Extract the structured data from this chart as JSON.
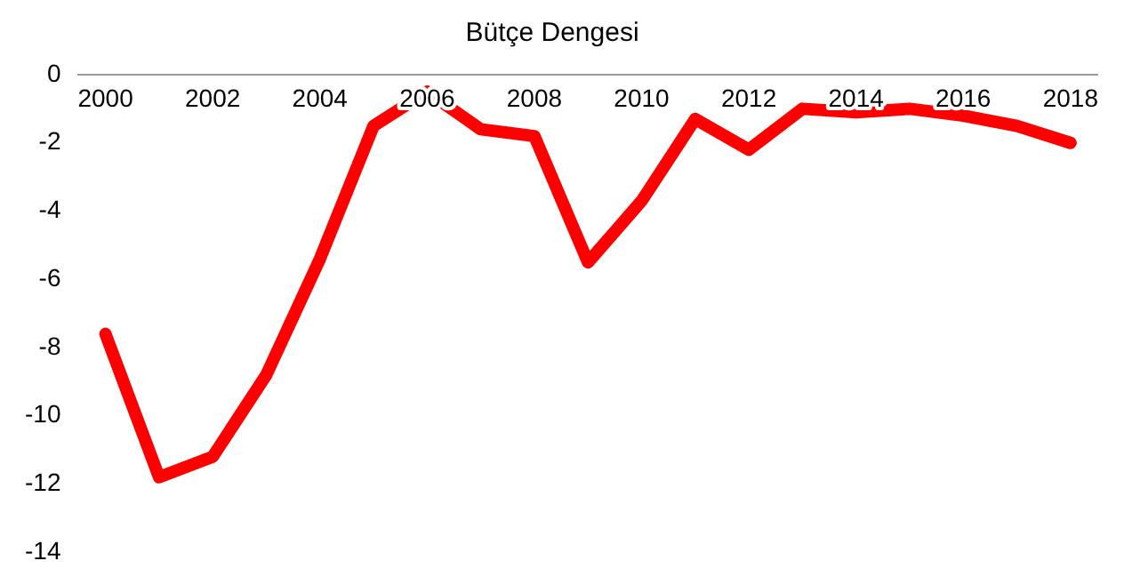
{
  "chart_data": {
    "type": "line",
    "title": "Bütçe Dengesi",
    "categories": [
      "2000",
      null,
      "2002",
      null,
      "2004",
      null,
      "2006",
      null,
      "2008",
      null,
      "2010",
      null,
      "2012",
      null,
      "2014",
      null,
      "2016",
      null,
      "2018"
    ],
    "series": [
      {
        "color": "#ff0000",
        "values": [
          -7.6,
          -11.8,
          -11.2,
          -8.8,
          -5.4,
          -1.5,
          -0.5,
          -1.6,
          -1.8,
          -5.5,
          -3.7,
          -1.3,
          -2.2,
          -1.0,
          -1.1,
          -1.0,
          -1.2,
          -1.5,
          -2.0
        ]
      }
    ],
    "ylim": [
      -14,
      0
    ],
    "yticks": [
      -14,
      -12,
      -10,
      -8,
      -6,
      -4,
      -2,
      0
    ],
    "grid": false,
    "legend": false,
    "marker": "none",
    "line_style": "solid"
  }
}
